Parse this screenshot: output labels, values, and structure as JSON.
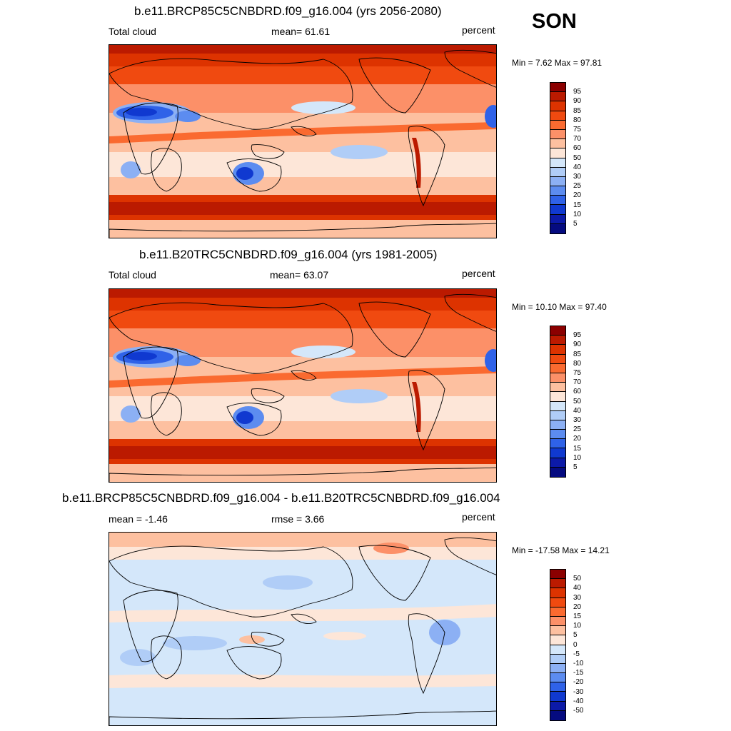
{
  "season": "SON",
  "panels": [
    {
      "title": "b.e11.BRCP85C5CNBDRD.f09_g16.004 (yrs 2056-2080)",
      "left_label": "Total cloud",
      "center_label": "mean=  61.61",
      "unit": "percent",
      "minmax": "Min =   7.62 Max =  97.81",
      "colorbar_labels": [
        "95",
        "90",
        "85",
        "80",
        "75",
        "70",
        "60",
        "50",
        "40",
        "30",
        "25",
        "20",
        "15",
        "10",
        "5"
      ],
      "colorbar_colors": [
        "#8b0000",
        "#bb1a00",
        "#dd3300",
        "#f04a10",
        "#fa6a30",
        "#fc9068",
        "#fdc0a0",
        "#fde6d8",
        "#d4e7fa",
        "#b0cdf7",
        "#8cb0f4",
        "#5c8cf0",
        "#2f62e8",
        "#1039d0",
        "#0c1aa8",
        "#050b80"
      ],
      "type": "total"
    },
    {
      "title": "b.e11.B20TRC5CNBDRD.f09_g16.004 (yrs 1981-2005)",
      "left_label": "Total cloud",
      "center_label": "mean=  63.07",
      "unit": "percent",
      "minmax": "Min =  10.10 Max =  97.40",
      "colorbar_labels": [
        "95",
        "90",
        "85",
        "80",
        "75",
        "70",
        "60",
        "50",
        "40",
        "30",
        "25",
        "20",
        "15",
        "10",
        "5"
      ],
      "colorbar_colors": [
        "#8b0000",
        "#bb1a00",
        "#dd3300",
        "#f04a10",
        "#fa6a30",
        "#fc9068",
        "#fdc0a0",
        "#fde6d8",
        "#d4e7fa",
        "#b0cdf7",
        "#8cb0f4",
        "#5c8cf0",
        "#2f62e8",
        "#1039d0",
        "#0c1aa8",
        "#050b80"
      ],
      "type": "total"
    },
    {
      "title": "b.e11.BRCP85C5CNBDRD.f09_g16.004 - b.e11.B20TRC5CNBDRD.f09_g16.004",
      "left_label": "mean =  -1.46",
      "center_label": "rmse =   3.66",
      "unit": "percent",
      "minmax": "Min = -17.58 Max =  14.21",
      "colorbar_labels": [
        "50",
        "40",
        "30",
        "20",
        "15",
        "10",
        "5",
        "0",
        "-5",
        "-10",
        "-15",
        "-20",
        "-30",
        "-40",
        "-50"
      ],
      "colorbar_colors": [
        "#8b0000",
        "#bb1a00",
        "#dd3300",
        "#f04a10",
        "#fa6a30",
        "#fc9068",
        "#fdc0a0",
        "#fde6d8",
        "#d4e7fa",
        "#b0cdf7",
        "#8cb0f4",
        "#5c8cf0",
        "#2f62e8",
        "#1039d0",
        "#0c1aa8",
        "#050b80"
      ],
      "type": "diff"
    }
  ]
}
